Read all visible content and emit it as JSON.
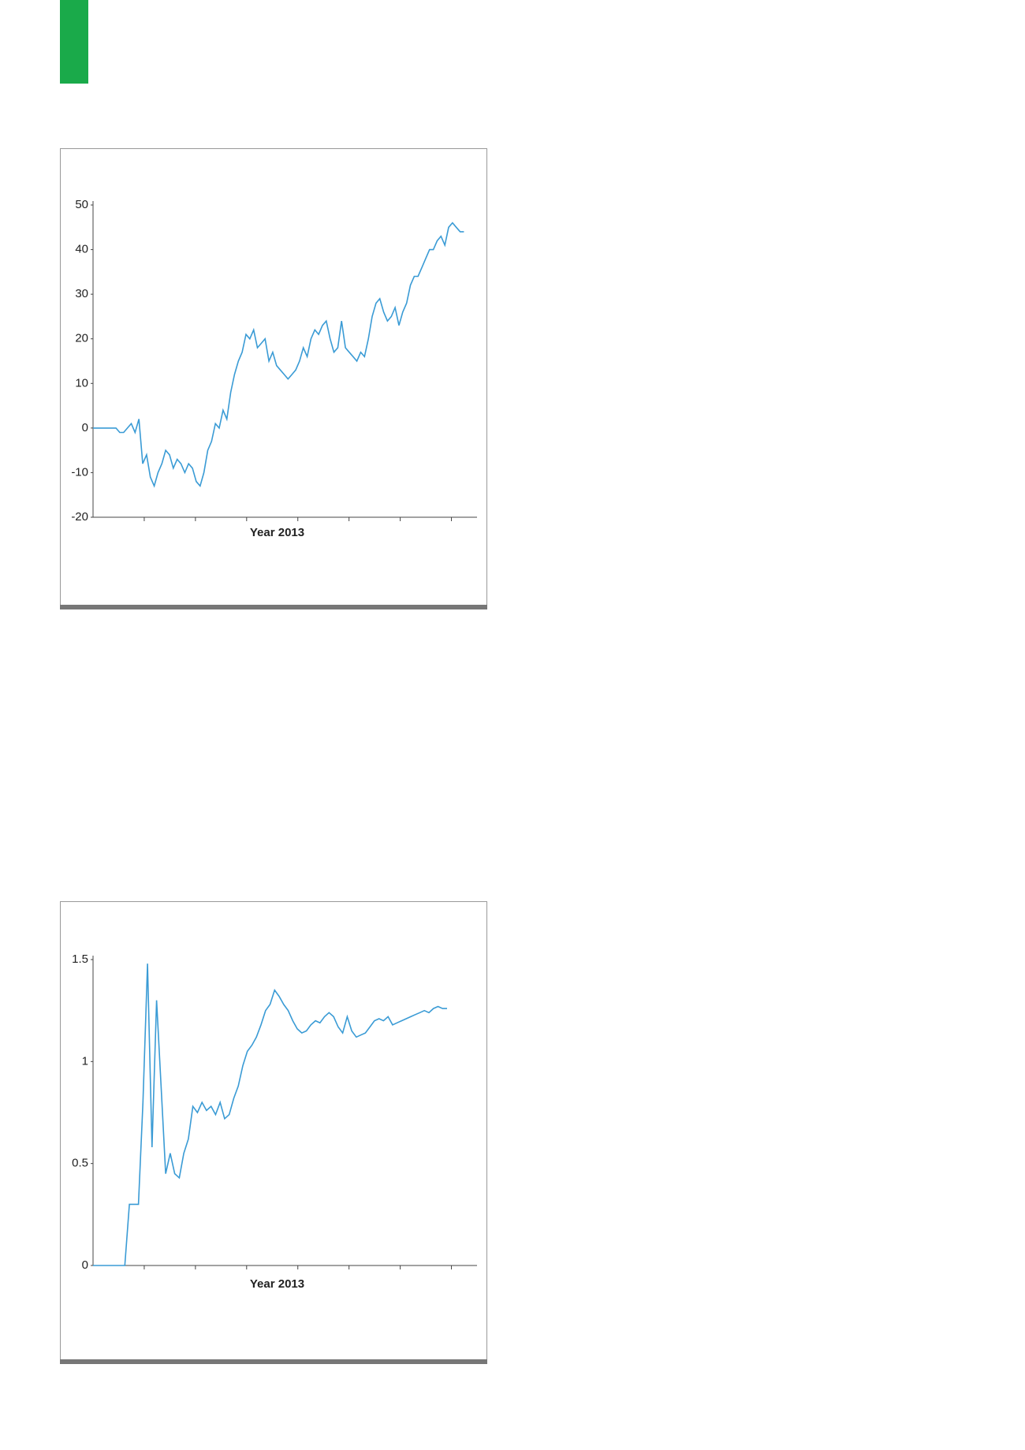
{
  "chart_data": [
    {
      "type": "line",
      "x_label": "Year 2013",
      "color": "#3a9bd5",
      "values": [
        0,
        0,
        0,
        0,
        0,
        0,
        0,
        -1,
        -1,
        0,
        1,
        -1,
        2,
        -8,
        -6,
        -11,
        -13,
        -10,
        -8,
        -5,
        -6,
        -9,
        -7,
        -8,
        -10,
        -8,
        -9,
        -12,
        -13,
        -10,
        -5,
        -3,
        1,
        0,
        4,
        2,
        8,
        12,
        15,
        17,
        21,
        20,
        22,
        18,
        19,
        20,
        15,
        17,
        14,
        13,
        12,
        11,
        12,
        13,
        15,
        18,
        16,
        20,
        22,
        21,
        23,
        24,
        20,
        17,
        18,
        24,
        18,
        17,
        16,
        15,
        17,
        16,
        20,
        25,
        28,
        29,
        26,
        24,
        25,
        27,
        23,
        26,
        28,
        32,
        34,
        34,
        36,
        38,
        40,
        40,
        42,
        43,
        41,
        45,
        46,
        45,
        44,
        44
      ],
      "ylim": [
        -20,
        50
      ],
      "yticks": [
        -20,
        -10,
        0,
        10,
        20,
        30,
        40,
        50
      ]
    },
    {
      "type": "line",
      "x_label": "Year 2013",
      "color": "#3a9bd5",
      "values": [
        0,
        0,
        0,
        0,
        0,
        0,
        0,
        0,
        0.3,
        0.3,
        0.3,
        0.8,
        1.48,
        0.58,
        1.3,
        0.88,
        0.45,
        0.55,
        0.45,
        0.43,
        0.55,
        0.62,
        0.78,
        0.75,
        0.8,
        0.76,
        0.78,
        0.74,
        0.8,
        0.72,
        0.74,
        0.82,
        0.88,
        0.98,
        1.05,
        1.08,
        1.12,
        1.18,
        1.25,
        1.28,
        1.35,
        1.32,
        1.28,
        1.25,
        1.2,
        1.16,
        1.14,
        1.15,
        1.18,
        1.2,
        1.19,
        1.22,
        1.24,
        1.22,
        1.17,
        1.14,
        1.22,
        1.15,
        1.12,
        1.13,
        1.14,
        1.17,
        1.2,
        1.21,
        1.2,
        1.22,
        1.18,
        1.19,
        1.2,
        1.21,
        1.22,
        1.23,
        1.24,
        1.25,
        1.24,
        1.26,
        1.27,
        1.26,
        1.26
      ],
      "ylim": [
        0,
        1.5
      ],
      "yticks": [
        0,
        0.5,
        1,
        1.5
      ]
    }
  ]
}
